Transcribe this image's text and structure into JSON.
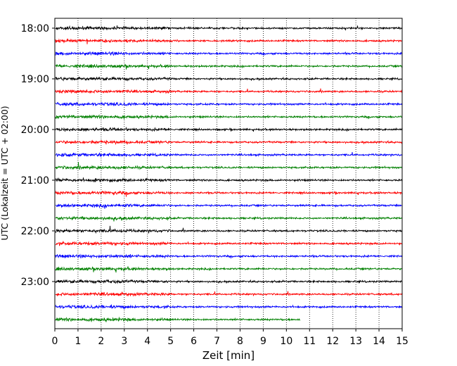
{
  "chart_data": {
    "type": "line",
    "subtype": "helicorder",
    "xlabel": "Zeit  [min]",
    "ylabel": "UTC (Lokalzeit = UTC + 02:00)",
    "xlim": [
      0,
      15
    ],
    "x_ticks": [
      "0",
      "1",
      "2",
      "3",
      "4",
      "5",
      "6",
      "7",
      "8",
      "9",
      "10",
      "11",
      "12",
      "13",
      "14",
      "15"
    ],
    "y_ticks": [
      "18:00",
      "19:00",
      "20:00",
      "21:00",
      "22:00",
      "23:00"
    ],
    "vertical_grid": "dotted",
    "traces_per_hour": 4,
    "trace_colors": [
      "#000000",
      "#ff0000",
      "#0000ff",
      "#008000"
    ],
    "traces": [
      {
        "start": "18:00",
        "color": "#000000",
        "end_min": 15
      },
      {
        "start": "18:15",
        "color": "#ff0000",
        "end_min": 15
      },
      {
        "start": "18:30",
        "color": "#0000ff",
        "end_min": 15
      },
      {
        "start": "18:45",
        "color": "#008000",
        "end_min": 15
      },
      {
        "start": "19:00",
        "color": "#000000",
        "end_min": 15
      },
      {
        "start": "19:15",
        "color": "#ff0000",
        "end_min": 15
      },
      {
        "start": "19:30",
        "color": "#0000ff",
        "end_min": 15
      },
      {
        "start": "19:45",
        "color": "#008000",
        "end_min": 15
      },
      {
        "start": "20:00",
        "color": "#000000",
        "end_min": 15
      },
      {
        "start": "20:15",
        "color": "#ff0000",
        "end_min": 15
      },
      {
        "start": "20:30",
        "color": "#0000ff",
        "end_min": 15
      },
      {
        "start": "20:45",
        "color": "#008000",
        "end_min": 15
      },
      {
        "start": "21:00",
        "color": "#000000",
        "end_min": 15
      },
      {
        "start": "21:15",
        "color": "#ff0000",
        "end_min": 15
      },
      {
        "start": "21:30",
        "color": "#0000ff",
        "end_min": 15
      },
      {
        "start": "21:45",
        "color": "#008000",
        "end_min": 15
      },
      {
        "start": "22:00",
        "color": "#000000",
        "end_min": 15
      },
      {
        "start": "22:15",
        "color": "#ff0000",
        "end_min": 15
      },
      {
        "start": "22:30",
        "color": "#0000ff",
        "end_min": 15
      },
      {
        "start": "22:45",
        "color": "#008000",
        "end_min": 15
      },
      {
        "start": "23:00",
        "color": "#000000",
        "end_min": 15
      },
      {
        "start": "23:15",
        "color": "#ff0000",
        "end_min": 15
      },
      {
        "start": "23:30",
        "color": "#0000ff",
        "end_min": 15
      },
      {
        "start": "23:45",
        "color": "#008000",
        "end_min": 10.6
      }
    ]
  }
}
